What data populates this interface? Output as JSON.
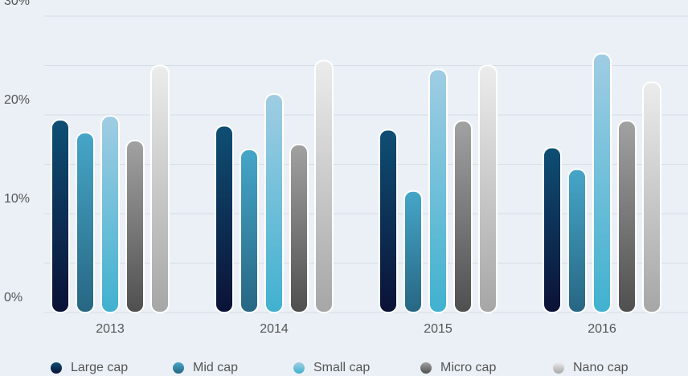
{
  "chart_data": {
    "type": "bar",
    "categories": [
      "2013",
      "2014",
      "2015",
      "2016"
    ],
    "series": [
      {
        "name": "Large cap",
        "color": [
          "#0f4f74",
          "#0b1136"
        ],
        "values": [
          19.5,
          18.9,
          18.5,
          16.7
        ]
      },
      {
        "name": "Mid cap",
        "color": [
          "#46a6c8",
          "#276683"
        ],
        "values": [
          18.2,
          16.5,
          12.3,
          14.5
        ]
      },
      {
        "name": "Small cap",
        "color": [
          "#a0cde3",
          "#40b1cf"
        ],
        "values": [
          19.9,
          22.1,
          24.6,
          26.2
        ]
      },
      {
        "name": "Micro cap",
        "color": [
          "#a2a2a2",
          "#4f4f4f"
        ],
        "values": [
          17.4,
          17.0,
          19.4,
          19.4
        ]
      },
      {
        "name": "Nano cap",
        "color": [
          "#ececec",
          "#a6a6a6"
        ],
        "values": [
          25.0,
          25.5,
          25.0,
          23.3
        ]
      }
    ],
    "ylim": [
      0,
      30
    ],
    "yticks": [
      {
        "value": 0,
        "label": "0%"
      },
      {
        "value": 10,
        "label": "10%"
      },
      {
        "value": 20,
        "label": "20%"
      },
      {
        "value": 30,
        "label": "30%"
      }
    ],
    "minor_yticks": [
      5,
      15,
      25
    ],
    "grid": true,
    "legend": "bottom"
  }
}
